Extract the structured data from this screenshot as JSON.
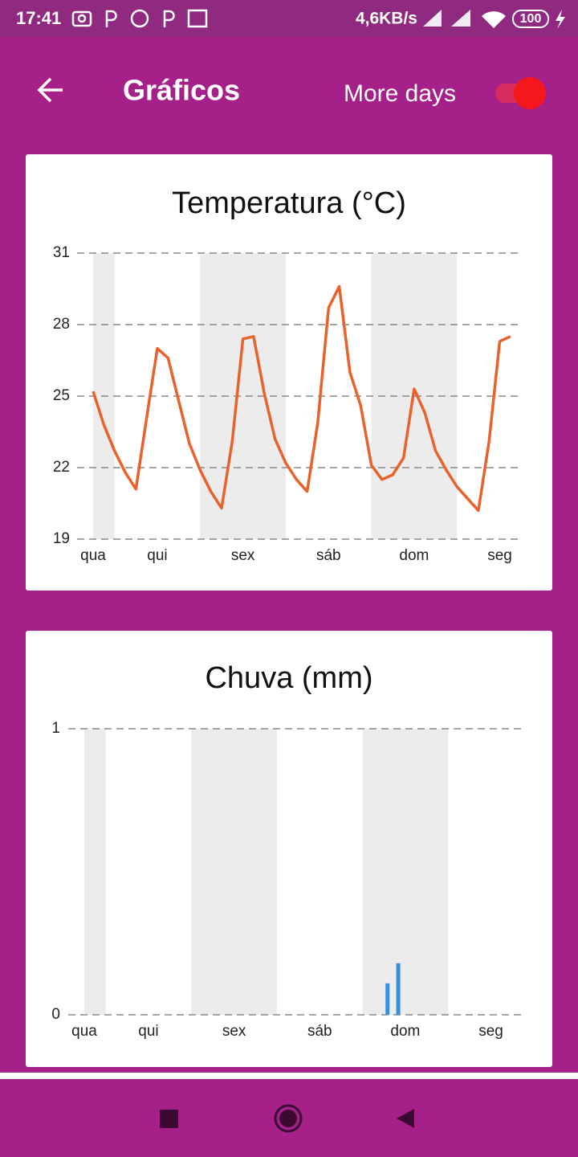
{
  "status_bar": {
    "time": "17:41",
    "speed": "4,6KB/s",
    "battery": "100"
  },
  "app_bar": {
    "title": "Gráficos",
    "toggle_label": "More days"
  },
  "chart_data": [
    {
      "type": "line",
      "title": "Temperatura (°C)",
      "color": "#e8622c",
      "days": [
        "qua",
        "qui",
        "sex",
        "sáb",
        "dom",
        "seg"
      ],
      "values": [
        25.2,
        23.8,
        22.7,
        21.8,
        21.1,
        24.1,
        27.0,
        26.6,
        24.8,
        23.0,
        21.9,
        21.0,
        20.3,
        23.1,
        27.4,
        27.5,
        25.1,
        23.2,
        22.2,
        21.5,
        21.0,
        23.9,
        28.7,
        29.6,
        26.0,
        24.6,
        22.1,
        21.5,
        21.7,
        22.4,
        25.3,
        24.3,
        22.7,
        21.9,
        21.2,
        20.7,
        20.2,
        23.1,
        27.3,
        27.5
      ],
      "ylim": [
        19,
        31
      ],
      "yticks": [
        19,
        22,
        25,
        28,
        31
      ],
      "grid": true
    },
    {
      "type": "bar",
      "title": "Chuva (mm)",
      "color": "#3a8fd8",
      "days": [
        "qua",
        "qui",
        "sex",
        "sáb",
        "dom",
        "seg"
      ],
      "values": [
        0,
        0,
        0,
        0,
        0,
        0,
        0,
        0,
        0,
        0,
        0,
        0,
        0,
        0,
        0,
        0,
        0,
        0,
        0,
        0,
        0,
        0,
        0,
        0,
        0,
        0,
        0,
        0,
        0.11,
        0.18,
        0,
        0,
        0,
        0,
        0,
        0,
        0,
        0,
        0,
        0
      ],
      "ylim": [
        0,
        1
      ],
      "yticks": [
        0,
        1
      ],
      "grid": true
    }
  ]
}
